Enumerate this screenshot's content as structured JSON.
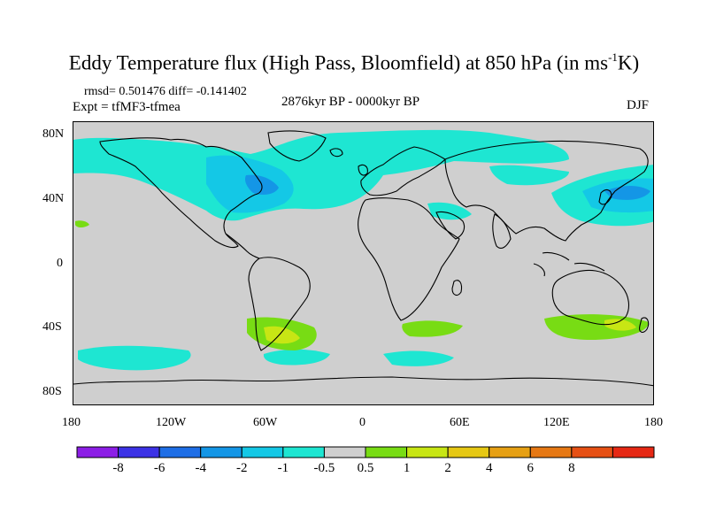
{
  "title": {
    "main": "Eddy Temperature flux (High Pass, Bloomfield) at 850 hPa (in ms",
    "sup": "-1",
    "tail": "K)"
  },
  "stats": "rmsd= 0.501476 diff= -0.141402",
  "experiment": "Expt = tfMF3-tfmea",
  "period": "2876kyr BP - 0000kyr BP",
  "season": "DJF",
  "axes": {
    "lat_labels": [
      "80N",
      "40N",
      "0",
      "40S",
      "80S"
    ],
    "lon_labels": [
      "180",
      "120W",
      "60W",
      "0",
      "60E",
      "120E",
      "180"
    ]
  },
  "colorbar": {
    "labels": [
      "-8",
      "-6",
      "-4",
      "-2",
      "-1",
      "-0.5",
      "0.5",
      "1",
      "2",
      "4",
      "6",
      "8"
    ],
    "colors": [
      "#8c1ee6",
      "#3c32e6",
      "#1e6ee6",
      "#1496e6",
      "#14c8e6",
      "#1ee6d2",
      "#cfcfcf",
      "#78dc14",
      "#c8e614",
      "#e6c814",
      "#e6a014",
      "#e67814",
      "#e65014",
      "#e62814"
    ]
  },
  "map_colors": {
    "ocean_land_neutral": "#cfcfcf",
    "negative_light": "#1ee6d2",
    "negative_medium": "#14c8e6",
    "negative_strong": "#1496e6",
    "positive_light": "#78dc14",
    "positive_medium": "#c8e614"
  }
}
